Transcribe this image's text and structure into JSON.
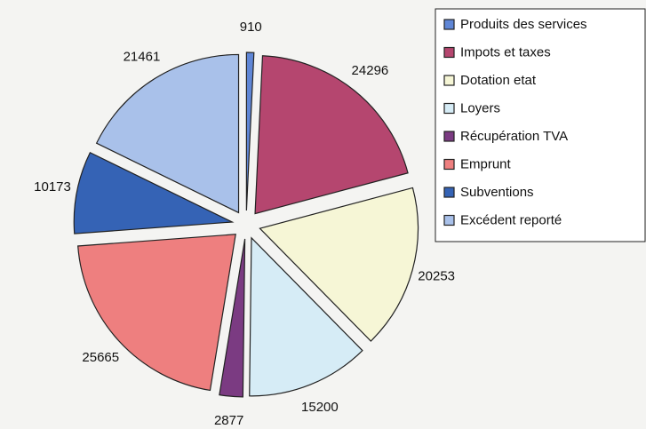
{
  "chart_data": {
    "type": "pie",
    "categories": [
      "Produits des services",
      "Impots et taxes",
      "Dotation etat",
      "Loyers",
      "Récupération TVA",
      "Emprunt",
      "Subventions",
      "Excédent reporté"
    ],
    "values": [
      910,
      24296,
      20253,
      15200,
      2877,
      25665,
      10173,
      21461
    ],
    "colors": [
      "#5f86d6",
      "#b5466f",
      "#f6f6d6",
      "#d6ecf6",
      "#7b3b82",
      "#ee7f7f",
      "#3563b5",
      "#a9c1ea"
    ],
    "legend": "right"
  }
}
